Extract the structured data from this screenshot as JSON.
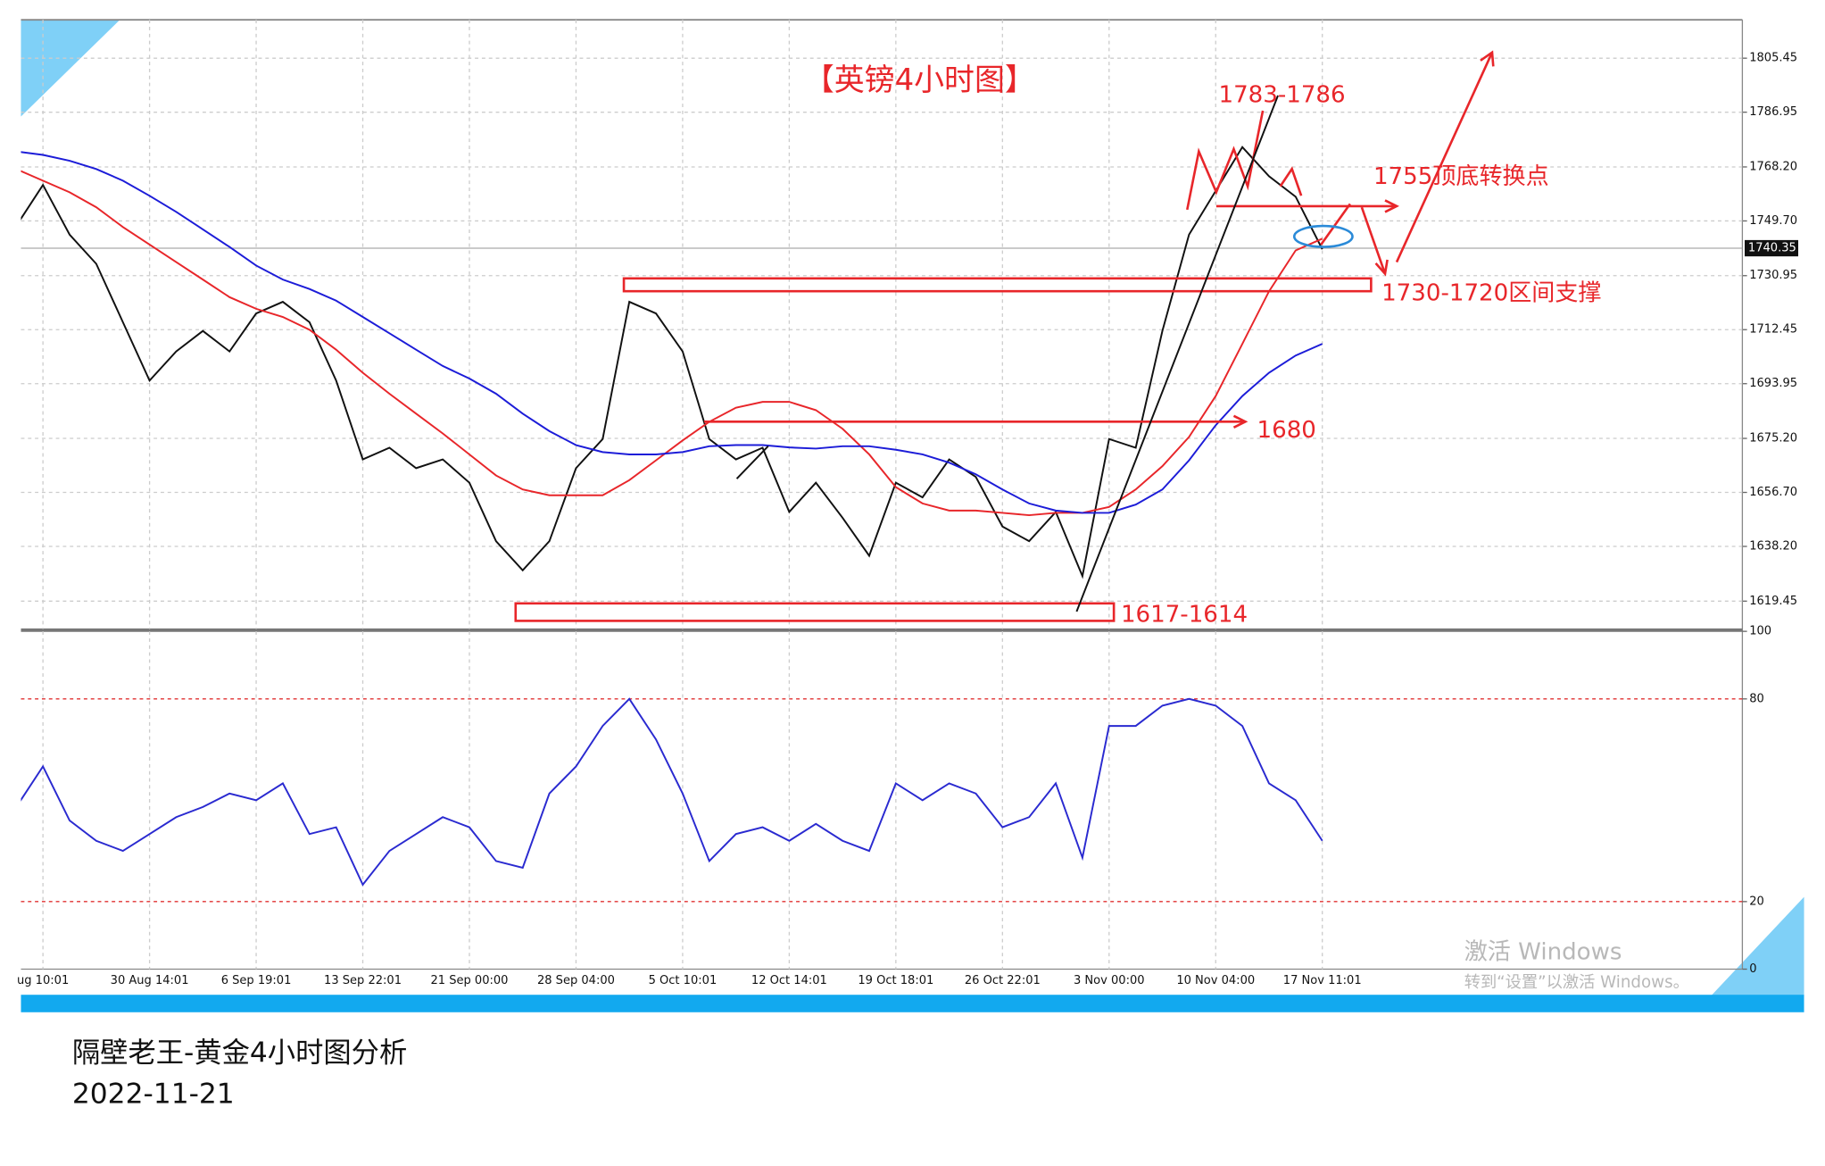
{
  "chart_data": [
    {
      "type": "line",
      "title": "【英镑4小时图】",
      "categories": [
        null,
        "ug 10:01",
        null,
        null,
        null,
        "30 Aug 14:01",
        null,
        null,
        null,
        "6 Sep 19:01",
        null,
        null,
        null,
        "13 Sep 22:01",
        null,
        null,
        null,
        "21 Sep 00:00",
        null,
        null,
        null,
        "28 Sep 04:00",
        null,
        null,
        null,
        "5 Oct 10:01",
        null,
        null,
        null,
        "12 Oct 14:01",
        null,
        null,
        null,
        "19 Oct 18:01",
        null,
        null,
        null,
        "26 Oct 22:01",
        null,
        null,
        null,
        "3 Nov 00:00",
        null,
        null,
        null,
        "10 Nov 04:00",
        null,
        null,
        null,
        "17 Nov 11:01"
      ],
      "series": [
        {
          "color": "#111111",
          "values": [
            1748,
            1762,
            1745,
            1735,
            1715,
            1695,
            1705,
            1712,
            1705,
            1718,
            1722,
            1715,
            1695,
            1668,
            1672,
            1665,
            1668,
            1660,
            1640,
            1630,
            1640,
            1665,
            1675,
            1722,
            1718,
            1705,
            1675,
            1668,
            1672,
            1650,
            1660,
            1648,
            1635,
            1660,
            1655,
            1668,
            1662,
            1645,
            1640,
            1650,
            1628,
            1675,
            1672,
            1712,
            1745,
            1760,
            1775,
            1765,
            1758,
            1740
          ]
        },
        {
          "color": "#e8262a",
          "values": [
            1767.5,
            1763.5,
            1759.5,
            1754.4,
            1747.6,
            1741.6,
            1735.6,
            1729.6,
            1723.6,
            1719.6,
            1716.8,
            1712.4,
            1705.6,
            1697.7,
            1690.5,
            1683.7,
            1676.9,
            1669.7,
            1662.5,
            1657.7,
            1655.7,
            1655.7,
            1655.7,
            1660.9,
            1667.7,
            1674.5,
            1680.9,
            1685.7,
            1687.7,
            1687.7,
            1684.9,
            1678.5,
            1669.7,
            1658.5,
            1652.9,
            1650.5,
            1650.5,
            1649.7,
            1648.9,
            1649.7,
            1649.7,
            1651.7,
            1657.7,
            1665.7,
            1675.7,
            1689.7,
            1707.6,
            1725.6,
            1739.6,
            1743.6
          ]
        },
        {
          "color": "#1c1cd8",
          "values": [
            1773.5,
            1772.3,
            1770.3,
            1767.5,
            1763.5,
            1758.3,
            1752.8,
            1746.8,
            1740.8,
            1734.4,
            1729.6,
            1726.4,
            1722.4,
            1716.8,
            1711.2,
            1705.6,
            1700.0,
            1695.7,
            1690.5,
            1683.7,
            1677.7,
            1672.9,
            1670.5,
            1669.7,
            1669.7,
            1670.5,
            1672.5,
            1672.9,
            1672.9,
            1672.1,
            1671.7,
            1672.5,
            1672.5,
            1671.3,
            1669.7,
            1666.9,
            1662.9,
            1657.7,
            1652.9,
            1650.5,
            1649.7,
            1649.7,
            1652.5,
            1657.7,
            1667.7,
            1679.7,
            1689.7,
            1697.7,
            1703.6,
            1707.6
          ]
        }
      ],
      "ylim": [
        1609.9,
        1818.6
      ],
      "yticks": [
        1805.45,
        1786.95,
        {
          "value": 1768.2,
          "label": "1768.20"
        },
        {
          "value": 1749.7,
          "label": "1749.70"
        },
        1730.95,
        1712.45,
        1693.95,
        {
          "value": 1675.2,
          "label": "1675.20"
        },
        {
          "value": 1656.7,
          "label": "1656.70"
        },
        {
          "value": 1638.2,
          "label": "1638.20"
        },
        1619.45
      ],
      "grid": true,
      "last_price": 1740.35,
      "annotations": [
        "1783-1786",
        "1755顶底转换点",
        "1730-1720区间支撑",
        "1680",
        "1617-1614"
      ]
    },
    {
      "type": "line",
      "series": [
        {
          "color": "#2a2ad0",
          "values": [
            48,
            60,
            44,
            38,
            35,
            40,
            45,
            48,
            52,
            50,
            55,
            40,
            42,
            25,
            35,
            40,
            45,
            42,
            32,
            30,
            52,
            60,
            72,
            80,
            68,
            52,
            32,
            40,
            42,
            38,
            43,
            38,
            35,
            55,
            50,
            55,
            52,
            42,
            45,
            55,
            33,
            72,
            72,
            78,
            80,
            78,
            72,
            55,
            50,
            38
          ]
        }
      ],
      "ylim": [
        0,
        100
      ],
      "yticks": [
        100,
        80,
        20,
        0
      ],
      "level_color": "#e03030"
    }
  ],
  "watermark": {
    "title": "激活 Windows",
    "subtitle": "转到“设置”以激活 Windows。"
  },
  "footer": {
    "title": "隔壁老王-黄金4小时图分析",
    "date": "2022-11-21"
  }
}
